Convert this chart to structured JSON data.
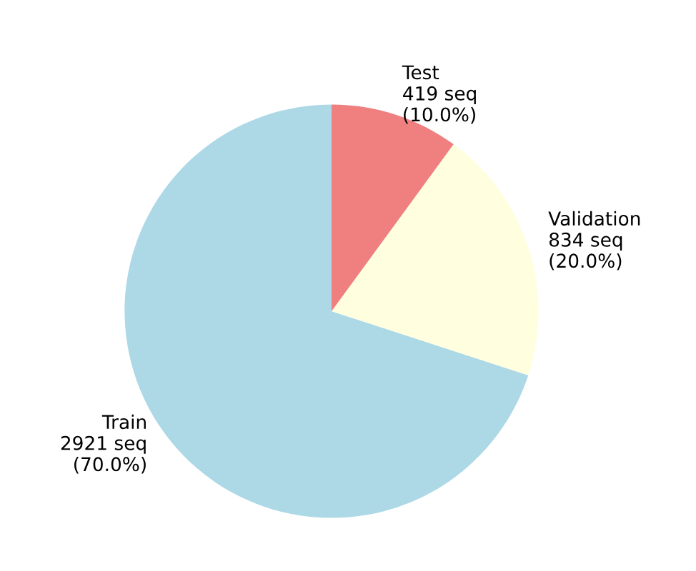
{
  "chart_data": {
    "type": "pie",
    "categories": [
      "Train",
      "Validation",
      "Test"
    ],
    "values": [
      2921,
      834,
      419
    ],
    "value_labels": [
      "2921 seq\n(70.0%)",
      "834 seq\n(20.0%)",
      "419 seq\n(10.0%)"
    ],
    "colors": [
      "#add8e6",
      "#ffffe0",
      "#f08080"
    ]
  }
}
